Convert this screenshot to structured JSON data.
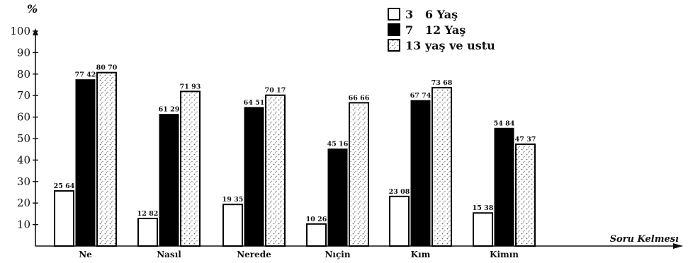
{
  "chart_data": {
    "type": "bar",
    "ylabel": "%",
    "xlabel": "Soru Kelmesı",
    "ylim": [
      0,
      100
    ],
    "yticks": [
      "10",
      "20",
      "30",
      "40",
      "50",
      "60",
      "70",
      "80",
      "90",
      "100"
    ],
    "legend_position": "top-right",
    "categories": [
      "Ne",
      "Nasıl",
      "Nerede",
      "Nıçin",
      "Kım",
      "Kimın"
    ],
    "series": [
      {
        "name": "3   6 Yaş",
        "values": [
          25.64,
          12.82,
          19.35,
          10.26,
          23.08,
          15.38
        ],
        "labels": [
          "25 64",
          "12 82",
          "19 35",
          "10 26",
          "23 08",
          "15 38"
        ],
        "fill": "white",
        "color": "#ffffff"
      },
      {
        "name": "7   12 Yaş",
        "values": [
          77.42,
          61.29,
          64.51,
          45.16,
          67.74,
          54.84
        ],
        "labels": [
          "77 42",
          "61 29",
          "64 51",
          "45 16",
          "67 74",
          "54 84"
        ],
        "fill": "black",
        "color": "#000000"
      },
      {
        "name": "13 yaş ve ustu",
        "values": [
          80.7,
          71.93,
          70.17,
          66.66,
          73.68,
          47.37
        ],
        "labels": [
          "80 70",
          "71 93",
          "70 17",
          "66 66",
          "73 68",
          "47 37"
        ],
        "fill": "stippled",
        "color": "#888888"
      }
    ]
  }
}
